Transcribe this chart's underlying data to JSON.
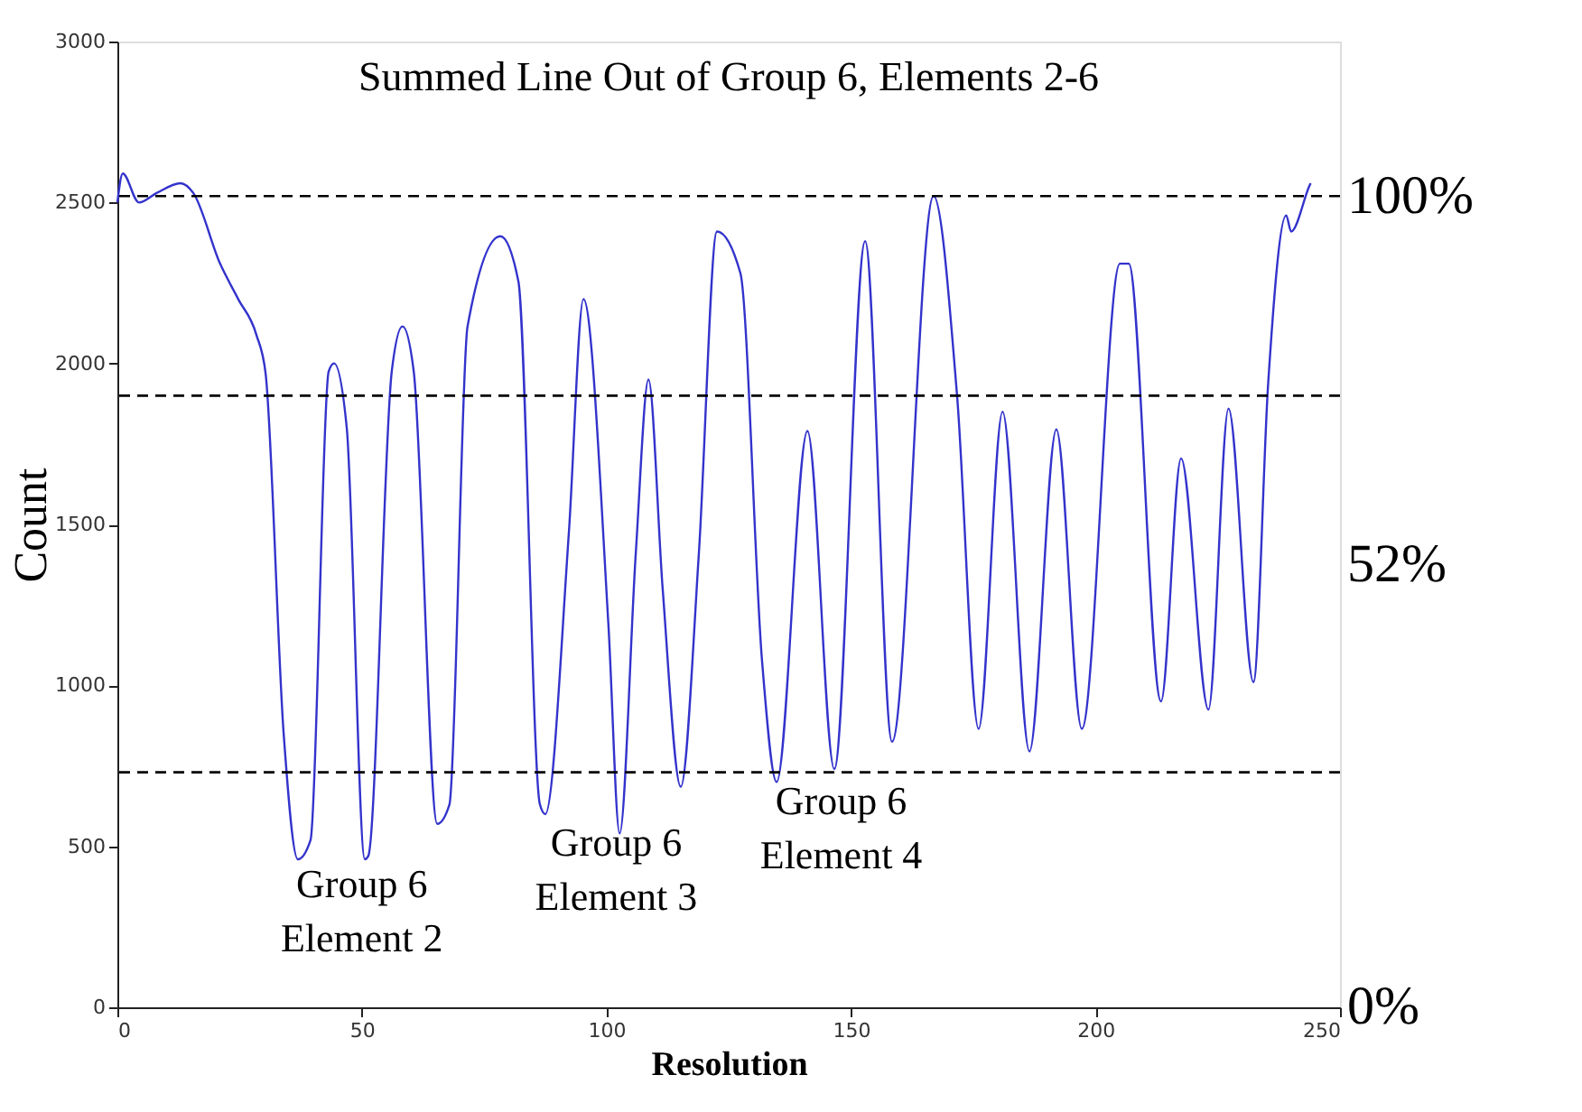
{
  "chart_data": {
    "type": "line",
    "title": "Summed Line Out of Group 6, Elements 2-6",
    "xlabel": "Resolution",
    "ylabel": "Count",
    "x": [
      0,
      1.1,
      4.4,
      8.1,
      12.9,
      15.5,
      21,
      24.7,
      28.4,
      30.3,
      34,
      36.9,
      39.5,
      43.2,
      44.3,
      46.9,
      50.6,
      51.3,
      56.1,
      58.3,
      60.6,
      65.4,
      67.9,
      71.6,
      78.3,
      82,
      86.4,
      87.5,
      92.3,
      95.3,
      100.4,
      102.7,
      106,
      108.6,
      111.5,
      115.2,
      118.9,
      122.6,
      127.4,
      131.8,
      134.8,
      141.1,
      146.6,
      152.9,
      158.4,
      166.9,
      171.7,
      176.1,
      181,
      186.5,
      192,
      197.2,
      205,
      206.8,
      213.4,
      217.5,
      223.1,
      227.2,
      232.3,
      235.3,
      239,
      240,
      243.7,
      244
    ],
    "series": [
      {
        "color": "#3333cc",
        "values": [
          2500,
          2590,
          2500,
          2530,
          2560,
          2530,
          2310,
          2200,
          2090,
          1970,
          850,
          460,
          520,
          1975,
          2000,
          1800,
          460,
          470,
          1975,
          2115,
          1975,
          570,
          630,
          2115,
          2395,
          2255,
          630,
          600,
          1470,
          2200,
          1190,
          540,
          1410,
          1950,
          1300,
          685,
          1410,
          2410,
          2280,
          1080,
          700,
          1790,
          740,
          2380,
          825,
          2520,
          1900,
          865,
          1850,
          795,
          1795,
          865,
          2310,
          2310,
          950,
          1705,
          925,
          1860,
          1010,
          1935,
          2460,
          2410,
          2550,
          2560
        ]
      }
    ],
    "xlim": [
      0,
      250
    ],
    "ylim": [
      0,
      3000
    ],
    "xticks": [
      0,
      50,
      100,
      150,
      200,
      250
    ],
    "yticks": [
      0,
      500,
      1000,
      1500,
      2000,
      2500,
      3000
    ],
    "grid": false,
    "marker": "none",
    "line_style": "solid",
    "ref_lines": [
      {
        "axis": "y",
        "value": 2520,
        "line_style": "dashed",
        "color": "#000000"
      },
      {
        "axis": "y",
        "value": 1900,
        "line_style": "dashed",
        "color": "#000000"
      },
      {
        "axis": "y",
        "value": 730,
        "line_style": "dashed",
        "color": "#000000"
      }
    ],
    "annotations": [
      "100%",
      "52%",
      "0%",
      {
        "text": "Group 6\nElement 2",
        "x": 50,
        "y": 470
      },
      {
        "text": "Group 6\nElement 3",
        "x": 102,
        "y": 600
      },
      {
        "text": "Group 6\nElement 4",
        "x": 148,
        "y": 730
      }
    ]
  }
}
